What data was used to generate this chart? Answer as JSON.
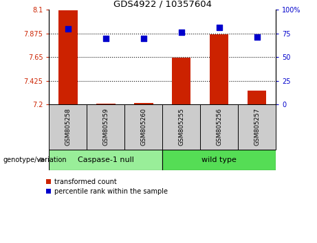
{
  "title": "GDS4922 / 10357604",
  "samples": [
    "GSM805258",
    "GSM805259",
    "GSM805260",
    "GSM805255",
    "GSM805256",
    "GSM805257"
  ],
  "red_values": [
    8.095,
    7.205,
    7.215,
    7.645,
    7.865,
    7.33
  ],
  "blue_values": [
    80,
    70,
    70,
    76,
    81,
    71
  ],
  "ylim_left": [
    7.2,
    8.1
  ],
  "ylim_right": [
    0,
    100
  ],
  "yticks_left": [
    7.2,
    7.425,
    7.65,
    7.875,
    8.1
  ],
  "yticks_right": [
    0,
    25,
    50,
    75,
    100
  ],
  "ytick_labels_left": [
    "7.2",
    "7.425",
    "7.65",
    "7.875",
    "8.1"
  ],
  "ytick_labels_right": [
    "0",
    "25",
    "50",
    "75",
    "100%"
  ],
  "hlines": [
    7.875,
    7.65,
    7.425
  ],
  "group1_label": "Caspase-1 null",
  "group2_label": "wild type",
  "group1_indices": [
    0,
    1,
    2
  ],
  "group2_indices": [
    3,
    4,
    5
  ],
  "genotype_label": "genotype/variation",
  "legend1_label": "transformed count",
  "legend2_label": "percentile rank within the sample",
  "bar_color": "#cc2200",
  "dot_color": "#0000cc",
  "group1_bg": "#99ee99",
  "group2_bg": "#55dd55",
  "sample_bg": "#cccccc",
  "bar_bottom": 7.2,
  "bar_width": 0.5,
  "dot_size": 35
}
